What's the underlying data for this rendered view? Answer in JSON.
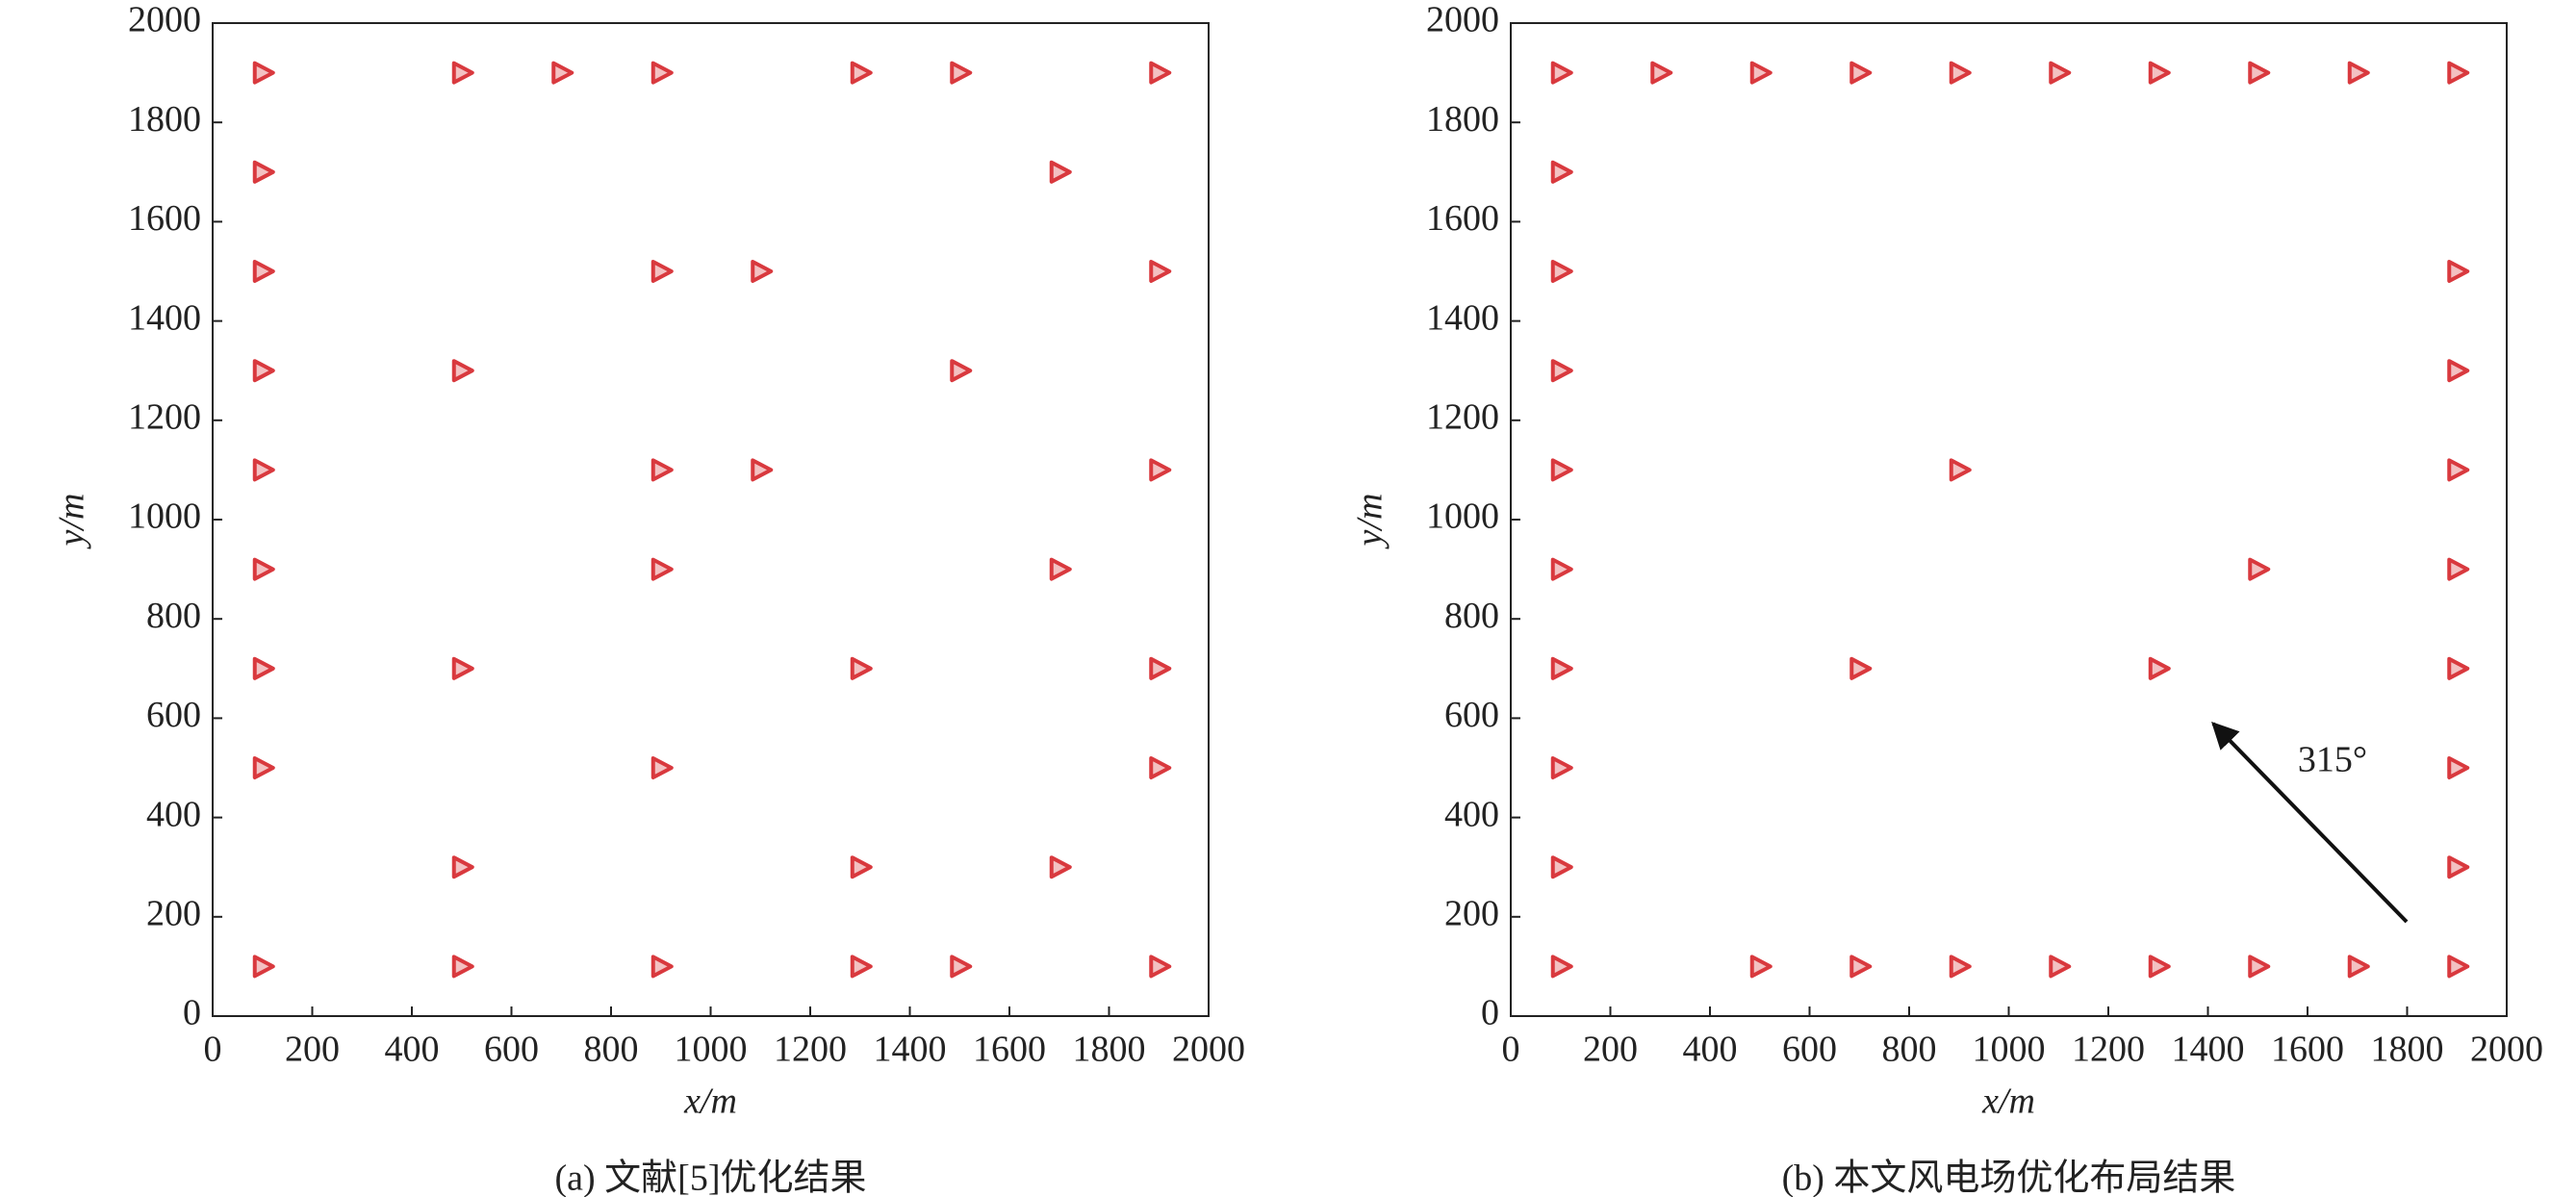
{
  "chart_data": [
    {
      "type": "scatter",
      "caption": "(a) 文献[5]优化结果",
      "xlabel": "x/m",
      "ylabel": "y/m",
      "color": "#d9393e",
      "x": [
        100,
        500,
        700,
        900,
        1300,
        1500,
        1900,
        100,
        1700,
        100,
        900,
        1100,
        1900,
        100,
        500,
        1500,
        100,
        900,
        1100,
        1900,
        100,
        900,
        1700,
        100,
        500,
        1300,
        1900,
        100,
        900,
        1900,
        500,
        1300,
        1700,
        100,
        500,
        900,
        1300,
        1500,
        1900
      ],
      "y": [
        1900,
        1900,
        1900,
        1900,
        1900,
        1900,
        1900,
        1700,
        1700,
        1500,
        1500,
        1500,
        1500,
        1300,
        1300,
        1300,
        1100,
        1100,
        1100,
        1100,
        900,
        900,
        900,
        700,
        700,
        700,
        700,
        500,
        500,
        500,
        300,
        300,
        300,
        100,
        100,
        100,
        100,
        100,
        100
      ],
      "xlim": [
        0,
        2000
      ],
      "ylim": [
        0,
        2000
      ],
      "xticks": [
        0,
        200,
        400,
        600,
        800,
        1000,
        1200,
        1400,
        1600,
        1800,
        2000
      ],
      "yticks": [
        0,
        200,
        400,
        600,
        800,
        1000,
        1200,
        1400,
        1600,
        1800,
        2000
      ]
    },
    {
      "type": "scatter",
      "caption": "(b) 本文风电场优化布局结果",
      "xlabel": "x/m",
      "ylabel": "y/m",
      "color": "#d9393e",
      "annotation": "315°",
      "x": [
        100,
        300,
        500,
        700,
        900,
        1100,
        1300,
        1500,
        1700,
        1900,
        100,
        100,
        1900,
        100,
        1900,
        100,
        900,
        1900,
        100,
        1500,
        1900,
        100,
        700,
        1300,
        1900,
        100,
        1900,
        100,
        1900,
        100,
        500,
        700,
        900,
        1100,
        1300,
        1500,
        1700,
        1900
      ],
      "y": [
        1900,
        1900,
        1900,
        1900,
        1900,
        1900,
        1900,
        1900,
        1900,
        1900,
        1700,
        1500,
        1500,
        1300,
        1300,
        1100,
        1100,
        1100,
        900,
        900,
        900,
        700,
        700,
        700,
        700,
        500,
        500,
        300,
        300,
        100,
        100,
        100,
        100,
        100,
        100,
        100,
        100,
        100
      ],
      "xlim": [
        0,
        2000
      ],
      "ylim": [
        0,
        2000
      ],
      "xticks": [
        0,
        200,
        400,
        600,
        800,
        1000,
        1200,
        1400,
        1600,
        1800,
        2000
      ],
      "yticks": [
        0,
        200,
        400,
        600,
        800,
        1000,
        1200,
        1400,
        1600,
        1800,
        2000
      ]
    }
  ]
}
